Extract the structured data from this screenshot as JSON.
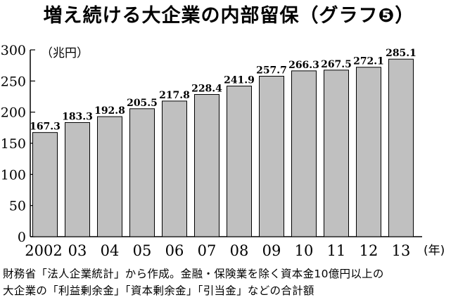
{
  "chart_data": {
    "type": "bar",
    "title": "増え続ける大企業の内部留保（グラフ❺）",
    "ylabel": "（兆円）",
    "xunit": "(年)",
    "categories": [
      "2002",
      "03",
      "04",
      "05",
      "06",
      "07",
      "08",
      "09",
      "10",
      "11",
      "12",
      "13"
    ],
    "values": [
      167.3,
      183.3,
      192.8,
      205.5,
      217.8,
      228.4,
      241.9,
      257.7,
      266.3,
      267.5,
      272.1,
      285.1
    ],
    "value_labels": [
      "167.3",
      "183.3",
      "192.8",
      "205.5",
      "217.8",
      "228.4",
      "241.9",
      "257.7",
      "266.3",
      "267.5",
      "272.1",
      "285.1"
    ],
    "ylim": [
      0,
      300
    ],
    "yticks": [
      0,
      50,
      100,
      150,
      200,
      250,
      300
    ],
    "grid": false,
    "bar_color": "#c0c0c0",
    "bar_edge_color": "#000000"
  },
  "notes": [
    "財務省「法人企業統計」から作成。金融・保険業を除く資本金10億円以上の",
    "大企業の「利益剰余金」「資本剰余金」「引当金」などの合計額"
  ]
}
